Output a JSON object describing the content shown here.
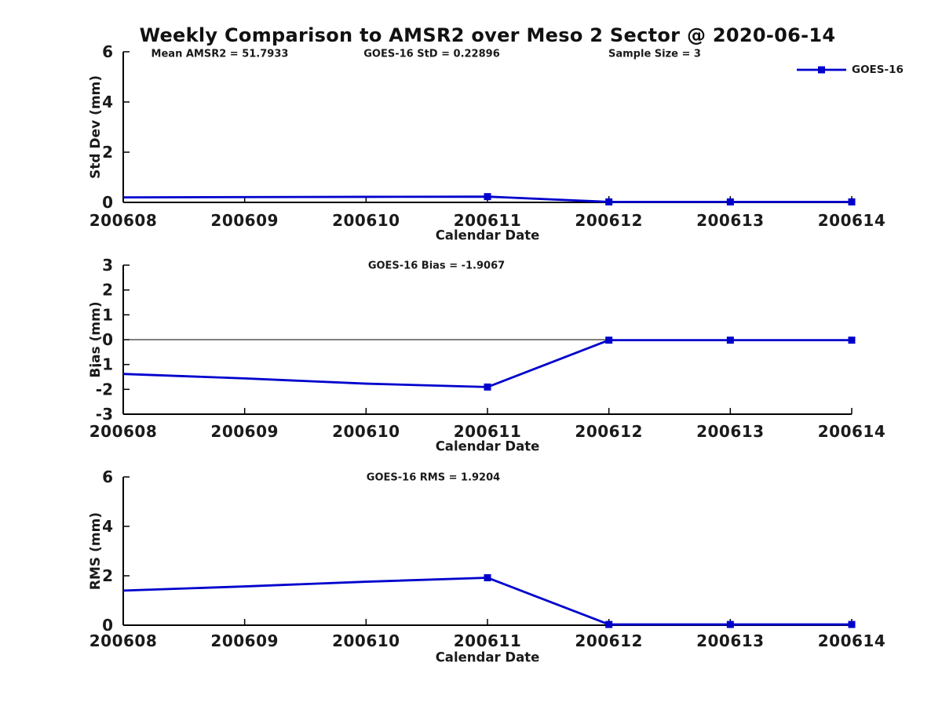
{
  "title": "Weekly Comparison to AMSR2 over Meso 2 Sector @ 2020-06-14",
  "colors": {
    "series": "#0000cd",
    "axis": "#000000",
    "text": "#1a1a1a",
    "background": "#ffffff"
  },
  "legend": {
    "label": "GOES-16"
  },
  "chart_data": [
    {
      "type": "line",
      "panel": "std-dev",
      "categories": [
        "200608",
        "200609",
        "200610",
        "200611",
        "200612",
        "200613",
        "200614"
      ],
      "series": [
        {
          "name": "GOES-16",
          "values": [
            0.2,
            0.21,
            0.22,
            0.229,
            0.02,
            0.02,
            0.02
          ],
          "markers": [
            false,
            false,
            false,
            true,
            true,
            true,
            true
          ]
        }
      ],
      "annotations": [
        "Mean AMSR2 = 51.7933",
        "GOES-16 StD = 0.22896",
        "Sample Size = 3"
      ],
      "xlabel": "Calendar Date",
      "ylabel": "Std Dev (mm)",
      "ylim": [
        0,
        6
      ],
      "yticks": [
        0,
        2,
        4,
        6
      ],
      "ytick_labels": [
        "0",
        "2",
        "4",
        "6"
      ],
      "zero_line": false,
      "legend_entry": "GOES-16",
      "legend_position": "top-right",
      "grid": false
    },
    {
      "type": "line",
      "panel": "bias",
      "categories": [
        "200608",
        "200609",
        "200610",
        "200611",
        "200612",
        "200613",
        "200614"
      ],
      "series": [
        {
          "name": "GOES-16",
          "values": [
            -1.38,
            -1.56,
            -1.77,
            -1.9067,
            -0.02,
            -0.02,
            -0.02
          ],
          "markers": [
            false,
            false,
            false,
            true,
            true,
            true,
            true
          ]
        }
      ],
      "annotations": [
        "GOES-16 Bias  = -1.9067"
      ],
      "xlabel": "Calendar Date",
      "ylabel": "Bias (mm)",
      "ylim": [
        -3,
        3
      ],
      "yticks": [
        3,
        2,
        1,
        0,
        -1,
        -2,
        -3
      ],
      "ytick_labels": [
        "3",
        "2",
        "1",
        "0",
        "-1",
        "-2",
        "-3"
      ],
      "zero_line": true,
      "grid": false
    },
    {
      "type": "line",
      "panel": "rms",
      "categories": [
        "200608",
        "200609",
        "200610",
        "200611",
        "200612",
        "200613",
        "200614"
      ],
      "series": [
        {
          "name": "GOES-16",
          "values": [
            1.4,
            1.57,
            1.76,
            1.9204,
            0.03,
            0.03,
            0.03
          ],
          "markers": [
            false,
            false,
            false,
            true,
            true,
            true,
            true
          ]
        }
      ],
      "annotations": [
        "GOES-16 RMS = 1.9204"
      ],
      "xlabel": "Calendar Date",
      "ylabel": "RMS (mm)",
      "ylim": [
        0,
        6
      ],
      "yticks": [
        0,
        2,
        4,
        6
      ],
      "ytick_labels": [
        "0",
        "2",
        "4",
        "6"
      ],
      "zero_line": false,
      "grid": false
    }
  ]
}
